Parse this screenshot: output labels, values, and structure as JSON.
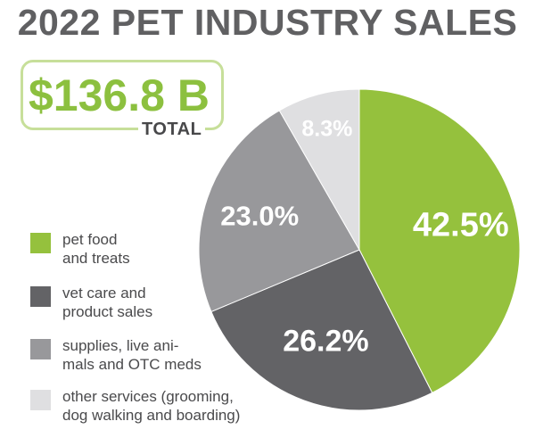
{
  "header": {
    "title": "2022 PET INDUSTRY SALES"
  },
  "total": {
    "value": "$136.8 B",
    "label": "TOTAL"
  },
  "chart_data": {
    "type": "pie",
    "title": "2022 PET INDUSTRY SALES",
    "unit": "%",
    "slices": [
      {
        "label": "pet food\nand treats",
        "value": 42.5,
        "display": "42.5%",
        "color": "#95c13d"
      },
      {
        "label": "vet care and\nproduct sales",
        "value": 26.2,
        "display": "26.2%",
        "color": "#636366"
      },
      {
        "label": "supplies, live ani-\nmals and OTC meds",
        "value": 23.0,
        "display": "23.0%",
        "color": "#98989b"
      },
      {
        "label": "other services (grooming,\ndog walking and boarding)",
        "value": 8.3,
        "display": "8.3%",
        "color": "#dfdfe1"
      }
    ],
    "start": "12 o'clock",
    "direction": "clockwise",
    "legend_position": "left"
  }
}
